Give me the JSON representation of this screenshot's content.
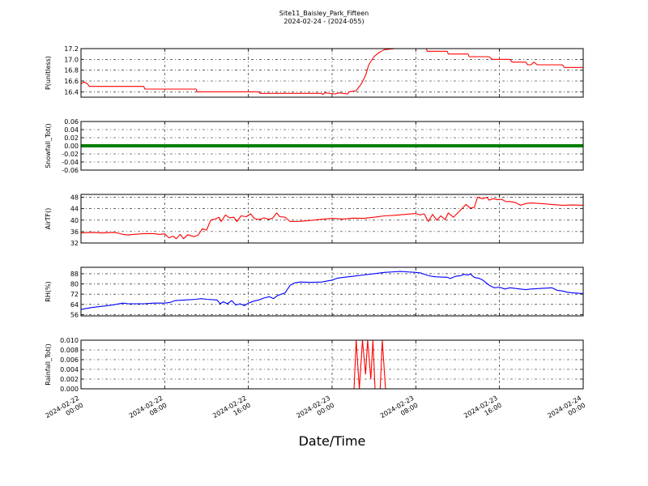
{
  "header": {
    "title": "Site11_Baisley_Park_Fifteen",
    "subtitle": "2024-02-24 - (2024-055)"
  },
  "chart_data": {
    "type": "line",
    "xlabel": "Date/Time",
    "x_ticks": [
      {
        "t": 0,
        "line1": "2024-02-22",
        "line2": "00:00"
      },
      {
        "t": 8,
        "line1": "2024-02-22",
        "line2": "08:00"
      },
      {
        "t": 16,
        "line1": "2024-02-22",
        "line2": "16:00"
      },
      {
        "t": 24,
        "line1": "2024-02-23",
        "line2": "00:00"
      },
      {
        "t": 32,
        "line1": "2024-02-23",
        "line2": "08:00"
      },
      {
        "t": 40,
        "line1": "2024-02-23",
        "line2": "16:00"
      },
      {
        "t": 48,
        "line1": "2024-02-24",
        "line2": "00:00"
      }
    ],
    "grid": true,
    "panels": [
      {
        "ylabel": "P(unitless)",
        "color": "#ff0000",
        "ylim": [
          16.3,
          17.2
        ],
        "yticks": [
          "16.4",
          "16.6",
          "16.8",
          "17.0",
          "17.2"
        ],
        "points": [
          [
            0,
            16.55
          ],
          [
            0.3,
            16.58
          ],
          [
            0.6,
            16.55
          ],
          [
            0.8,
            16.5
          ],
          [
            6,
            16.5
          ],
          [
            6.1,
            16.45
          ],
          [
            11,
            16.45
          ],
          [
            11.1,
            16.4
          ],
          [
            17,
            16.4
          ],
          [
            17.1,
            16.37
          ],
          [
            23,
            16.37
          ],
          [
            23.1,
            16.35
          ],
          [
            23.3,
            16.38
          ],
          [
            24.3,
            16.36
          ],
          [
            24.6,
            16.38
          ],
          [
            25.5,
            16.36
          ],
          [
            25.6,
            16.4
          ],
          [
            26.3,
            16.42
          ],
          [
            26.8,
            16.55
          ],
          [
            27.2,
            16.7
          ],
          [
            27.5,
            16.9
          ],
          [
            28,
            17.05
          ],
          [
            28.5,
            17.13
          ],
          [
            29,
            17.18
          ],
          [
            30,
            17.2
          ],
          [
            33,
            17.2
          ],
          [
            33.1,
            17.15
          ],
          [
            35,
            17.15
          ],
          [
            35.1,
            17.1
          ],
          [
            37,
            17.1
          ],
          [
            37.1,
            17.05
          ],
          [
            39,
            17.05
          ],
          [
            39.3,
            17.0
          ],
          [
            41,
            17.0
          ],
          [
            41.2,
            16.95
          ],
          [
            42.5,
            16.95
          ],
          [
            42.7,
            16.9
          ],
          [
            43,
            16.9
          ],
          [
            43.3,
            16.95
          ],
          [
            43.6,
            16.9
          ],
          [
            46,
            16.9
          ],
          [
            46.2,
            16.85
          ],
          [
            48,
            16.85
          ]
        ]
      },
      {
        "ylabel": "Snowfall_Tot()",
        "color": "#008000",
        "ylim": [
          -0.06,
          0.06
        ],
        "yticks": [
          "-0.06",
          "-0.04",
          "-0.02",
          "0.00",
          "0.02",
          "0.04",
          "0.06"
        ],
        "points": [
          [
            0,
            0
          ],
          [
            48,
            0
          ]
        ]
      },
      {
        "ylabel": "AirTF()",
        "color": "#ff0000",
        "ylim": [
          32,
          49
        ],
        "yticks": [
          "32",
          "36",
          "40",
          "44",
          "48"
        ],
        "points": [
          [
            0,
            35.5
          ],
          [
            1,
            35.7
          ],
          [
            2,
            35.5
          ],
          [
            3,
            35.7
          ],
          [
            3.5,
            35.5
          ],
          [
            4,
            35.0
          ],
          [
            4.5,
            34.8
          ],
          [
            5,
            35.0
          ],
          [
            6,
            35.3
          ],
          [
            7,
            35.3
          ],
          [
            7.5,
            35.0
          ],
          [
            8,
            35.2
          ],
          [
            8.4,
            33.8
          ],
          [
            8.8,
            34.4
          ],
          [
            9.1,
            33.5
          ],
          [
            9.5,
            35.0
          ],
          [
            9.8,
            33.5
          ],
          [
            10.2,
            34.9
          ],
          [
            10.8,
            34.2
          ],
          [
            11.2,
            34.8
          ],
          [
            11.6,
            37.0
          ],
          [
            12,
            36.5
          ],
          [
            12.4,
            40.0
          ],
          [
            12.9,
            40.5
          ],
          [
            13.2,
            41.0
          ],
          [
            13.4,
            39.5
          ],
          [
            13.8,
            41.8
          ],
          [
            14.2,
            40.8
          ],
          [
            14.6,
            41.0
          ],
          [
            14.9,
            39.5
          ],
          [
            15.3,
            41.5
          ],
          [
            15.8,
            41.2
          ],
          [
            16.2,
            42.2
          ],
          [
            16.6,
            40.5
          ],
          [
            17,
            40.2
          ],
          [
            17.5,
            40.8
          ],
          [
            17.9,
            40.3
          ],
          [
            18.3,
            40.6
          ],
          [
            18.7,
            42.5
          ],
          [
            19,
            41.2
          ],
          [
            19.5,
            41.0
          ],
          [
            20,
            39.5
          ],
          [
            21,
            39.6
          ],
          [
            22,
            39.9
          ],
          [
            23,
            40.3
          ],
          [
            24,
            40.6
          ],
          [
            25,
            40.4
          ],
          [
            26,
            40.7
          ],
          [
            27,
            40.6
          ],
          [
            28,
            41.0
          ],
          [
            29,
            41.5
          ],
          [
            30,
            41.7
          ],
          [
            31,
            42.0
          ],
          [
            32,
            42.3
          ],
          [
            32.4,
            41.8
          ],
          [
            32.8,
            42.2
          ],
          [
            33.2,
            39.5
          ],
          [
            33.6,
            42.0
          ],
          [
            34,
            40.0
          ],
          [
            34.4,
            41.5
          ],
          [
            34.8,
            40.2
          ],
          [
            35.1,
            42.5
          ],
          [
            35.6,
            41.0
          ],
          [
            36,
            42.5
          ],
          [
            36.4,
            44.0
          ],
          [
            36.8,
            45.5
          ],
          [
            37.2,
            44.2
          ],
          [
            37.6,
            44.5
          ],
          [
            37.9,
            48.0
          ],
          [
            38.4,
            47.5
          ],
          [
            38.8,
            48.0
          ],
          [
            39,
            47.0
          ],
          [
            39.4,
            47.5
          ],
          [
            39.8,
            47.2
          ],
          [
            40.2,
            47.3
          ],
          [
            40.6,
            46.5
          ],
          [
            41,
            46.5
          ],
          [
            41.5,
            46.2
          ],
          [
            42,
            45.2
          ],
          [
            42.5,
            45.8
          ],
          [
            43,
            46.0
          ],
          [
            44,
            45.8
          ],
          [
            45,
            45.5
          ],
          [
            46,
            45.2
          ],
          [
            47,
            45.3
          ],
          [
            48,
            45.2
          ]
        ]
      },
      {
        "ylabel": "RH(%)",
        "color": "#0000ff",
        "ylim": [
          55,
          93
        ],
        "yticks": [
          "56",
          "64",
          "72",
          "80",
          "88"
        ],
        "points": [
          [
            0,
            60
          ],
          [
            1,
            61.5
          ],
          [
            2,
            62.5
          ],
          [
            3,
            63.5
          ],
          [
            4,
            65.0
          ],
          [
            4.5,
            64.5
          ],
          [
            5,
            64.5
          ],
          [
            6,
            64.5
          ],
          [
            7,
            65
          ],
          [
            8,
            65
          ],
          [
            8.5,
            65.5
          ],
          [
            9,
            67
          ],
          [
            10,
            67.5
          ],
          [
            11,
            68
          ],
          [
            11.5,
            68.5
          ],
          [
            12,
            68
          ],
          [
            13,
            67.5
          ],
          [
            13.3,
            64.5
          ],
          [
            13.6,
            66
          ],
          [
            14,
            64.5
          ],
          [
            14.4,
            67
          ],
          [
            14.8,
            63.5
          ],
          [
            15.2,
            64.5
          ],
          [
            15.6,
            63
          ],
          [
            16,
            65
          ],
          [
            16.5,
            66.5
          ],
          [
            17,
            67.5
          ],
          [
            17.5,
            69
          ],
          [
            18,
            70
          ],
          [
            18.4,
            68.5
          ],
          [
            18.8,
            71
          ],
          [
            19.5,
            73
          ],
          [
            20,
            79
          ],
          [
            20.5,
            81
          ],
          [
            21,
            81.5
          ],
          [
            22,
            81.2
          ],
          [
            23,
            81.5
          ],
          [
            24,
            83
          ],
          [
            24.5,
            84.5
          ],
          [
            25,
            85
          ],
          [
            26,
            86
          ],
          [
            27,
            87
          ],
          [
            28,
            88
          ],
          [
            29,
            89
          ],
          [
            30,
            89.5
          ],
          [
            30.5,
            89.8
          ],
          [
            31,
            89.5
          ],
          [
            32,
            89
          ],
          [
            32.5,
            88.5
          ],
          [
            33,
            87
          ],
          [
            33.5,
            86
          ],
          [
            34,
            85.5
          ],
          [
            35,
            85.2
          ],
          [
            35.3,
            84.2
          ],
          [
            35.8,
            86
          ],
          [
            36.3,
            86.5
          ],
          [
            36.6,
            87.5
          ],
          [
            37,
            87
          ],
          [
            37.2,
            87.8
          ],
          [
            37.6,
            85
          ],
          [
            38,
            84.5
          ],
          [
            38.4,
            83
          ],
          [
            39,
            79
          ],
          [
            39.5,
            77
          ],
          [
            40,
            77.5
          ],
          [
            40.5,
            76
          ],
          [
            41,
            77
          ],
          [
            41.5,
            76.5
          ],
          [
            42,
            76
          ],
          [
            42.5,
            75.5
          ],
          [
            43,
            76
          ],
          [
            44,
            76.5
          ],
          [
            45,
            77
          ],
          [
            45.5,
            75
          ],
          [
            46,
            74.5
          ],
          [
            46.5,
            73.5
          ],
          [
            47,
            73
          ],
          [
            48,
            72.5
          ]
        ]
      },
      {
        "ylabel": "Rainfall_Tot()",
        "color": "#ff0000",
        "ylim": [
          0,
          0.01
        ],
        "yticks": [
          "0.000",
          "0.002",
          "0.004",
          "0.006",
          "0.008",
          "0.010"
        ],
        "points": [
          [
            0,
            0
          ],
          [
            26.1,
            0
          ],
          [
            26.3,
            0.01
          ],
          [
            26.6,
            0
          ],
          [
            26.9,
            0.01
          ],
          [
            27.2,
            0.003
          ],
          [
            27.4,
            0.01
          ],
          [
            27.7,
            0.002
          ],
          [
            27.9,
            0.01
          ],
          [
            28.1,
            0
          ],
          [
            28.6,
            0
          ],
          [
            28.8,
            0.01
          ],
          [
            29.1,
            0
          ],
          [
            48,
            0
          ]
        ]
      }
    ]
  }
}
